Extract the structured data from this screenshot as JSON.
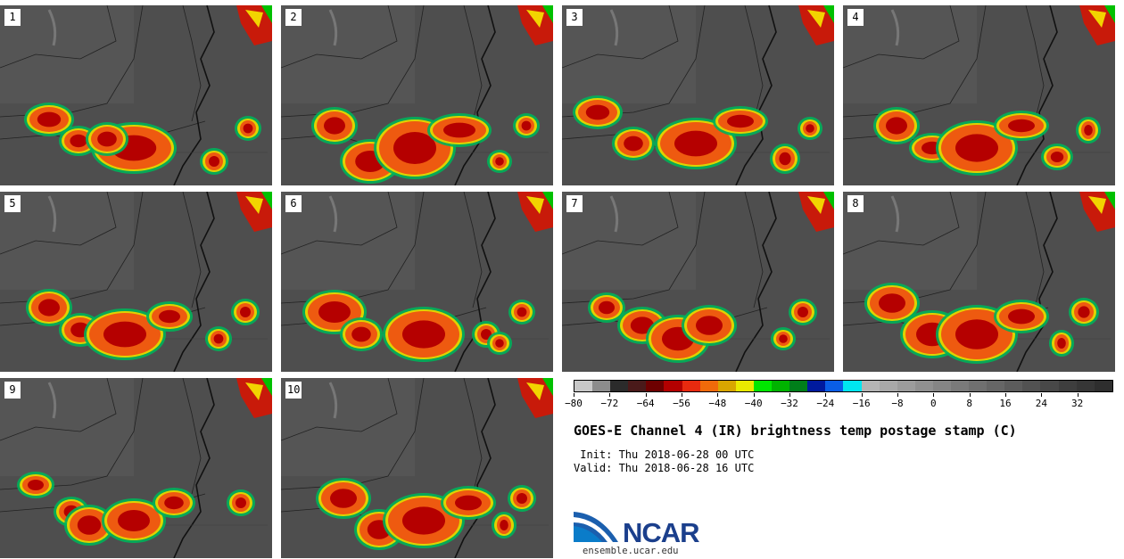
{
  "panels": [
    {
      "label": "1"
    },
    {
      "label": "2"
    },
    {
      "label": "3"
    },
    {
      "label": "4"
    },
    {
      "label": "5"
    },
    {
      "label": "6"
    },
    {
      "label": "7"
    },
    {
      "label": "8"
    },
    {
      "label": "9"
    },
    {
      "label": "10"
    }
  ],
  "colorbar": {
    "colors": [
      "#c8c8c8",
      "#8c8c8c",
      "#2b2b2b",
      "#4a1a1a",
      "#6e0000",
      "#b30000",
      "#e82a0f",
      "#f06a0a",
      "#d9a600",
      "#eaea00",
      "#00e600",
      "#00b300",
      "#007f1a",
      "#001a9e",
      "#0a5ee6",
      "#00e6f0",
      "#b4b4b4",
      "#a8a8a8",
      "#9c9c9c",
      "#909090",
      "#858585",
      "#7a7a7a",
      "#707070",
      "#666666",
      "#5c5c5c",
      "#525252",
      "#484848",
      "#3e3e3e",
      "#363636",
      "#2e2e2e"
    ],
    "tick_labels": [
      "−80",
      "−72",
      "−64",
      "−56",
      "−48",
      "−40",
      "−32",
      "−24",
      "−16",
      "−8",
      "0",
      "8",
      "16",
      "24",
      "32"
    ],
    "range": [
      -80,
      40
    ]
  },
  "title": "GOES-E Channel 4 (IR) brightness temp postage stamp (C)",
  "init": " Init: Thu 2018-06-28 00 UTC",
  "valid": "Valid: Thu 2018-06-28 16 UTC",
  "logo_text": "NCAR",
  "url": "ensemble.ucar.edu"
}
